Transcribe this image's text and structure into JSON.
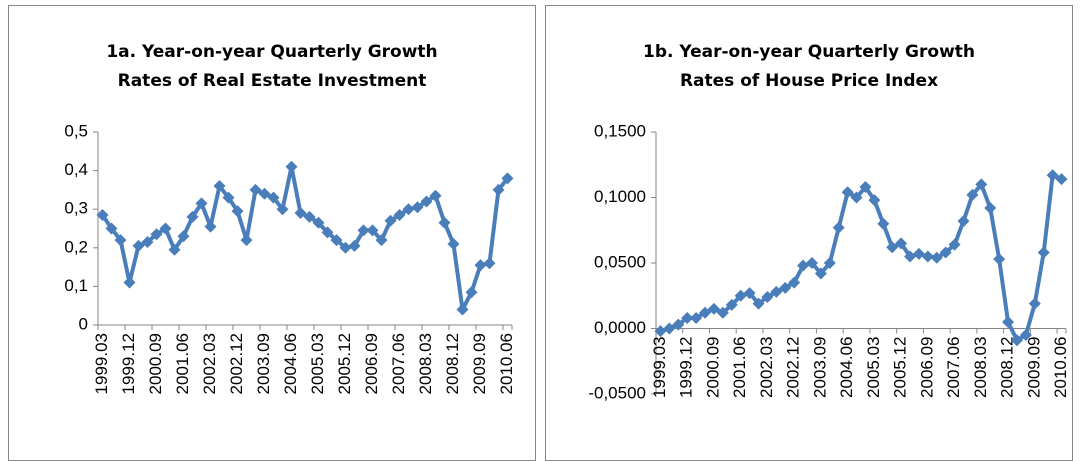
{
  "chart_data": [
    {
      "type": "line",
      "title": "1a. Year-on-year Quarterly Growth Rates of Real Estate Investment",
      "color": "#4a7ebb",
      "categories": [
        "1999.03",
        null,
        null,
        "1999.12",
        null,
        null,
        "2000.09",
        null,
        null,
        "2001.06",
        null,
        null,
        "2002.03",
        null,
        null,
        "2002.12",
        null,
        null,
        "2003.09",
        null,
        null,
        "2004.06",
        null,
        null,
        "2005.03",
        null,
        null,
        "2005.12",
        null,
        null,
        "2006.09",
        null,
        null,
        "2007.06",
        null,
        null,
        "2008.03",
        null,
        null,
        "2008.12",
        null,
        null,
        "2009.09",
        null,
        null,
        "2010.06"
      ],
      "values": [
        0.285,
        0.25,
        0.22,
        0.11,
        0.205,
        0.215,
        0.235,
        0.25,
        0.195,
        0.23,
        0.28,
        0.315,
        0.255,
        0.36,
        0.33,
        0.295,
        0.22,
        0.35,
        0.34,
        0.33,
        0.3,
        0.41,
        0.29,
        0.28,
        0.265,
        0.24,
        0.22,
        0.2,
        0.205,
        0.245,
        0.245,
        0.22,
        0.27,
        0.285,
        0.3,
        0.305,
        0.32,
        0.335,
        0.265,
        0.21,
        0.04,
        0.085,
        0.155,
        0.16,
        0.35,
        0.38
      ],
      "ylim": [
        0,
        0.5
      ],
      "yticks": [
        0,
        {
          "value": 0.1,
          "label": "0,1"
        },
        {
          "value": 0.2,
          "label": "0,2"
        },
        {
          "value": 0.3,
          "label": "0,3"
        },
        {
          "value": 0.4,
          "label": "0,4"
        },
        {
          "value": 0.5,
          "label": "0,5"
        }
      ]
    },
    {
      "type": "line",
      "title": "1b. Year-on-year Quarterly Growth Rates of House Price Index",
      "color": "#4a7ebb",
      "categories": [
        "1999.03",
        null,
        null,
        "1999.12",
        null,
        null,
        "2000.09",
        null,
        null,
        "2001.06",
        null,
        null,
        "2002.03",
        null,
        null,
        "2002.12",
        null,
        null,
        "2003.09",
        null,
        null,
        "2004.06",
        null,
        null,
        "2005.03",
        null,
        null,
        "2005.12",
        null,
        null,
        "2006.09",
        null,
        null,
        "2007.06",
        null,
        null,
        "2008.03",
        null,
        null,
        "2008.12",
        null,
        null,
        "2009.09",
        null,
        null,
        "2010.06"
      ],
      "values": [
        -0.002,
        0.0,
        0.003,
        0.008,
        0.008,
        0.012,
        0.015,
        0.012,
        0.018,
        0.025,
        0.027,
        0.019,
        0.024,
        0.028,
        0.031,
        0.035,
        0.048,
        0.05,
        0.042,
        0.05,
        0.077,
        0.104,
        0.1,
        0.108,
        0.098,
        0.08,
        0.062,
        0.065,
        0.055,
        0.057,
        0.055,
        0.054,
        0.058,
        0.064,
        0.082,
        0.102,
        0.11,
        0.092,
        0.053,
        0.005,
        -0.009,
        -0.005,
        0.019,
        0.058,
        0.117,
        0.114
      ],
      "ylim": [
        -0.05,
        0.15
      ],
      "yticks": [
        {
          "value": -0.05,
          "label": "-0,0500"
        },
        {
          "value": 0,
          "label": "0,0000"
        },
        {
          "value": 0.05,
          "label": "0,0500"
        },
        {
          "value": 0.1,
          "label": "0,1000"
        },
        {
          "value": 0.15,
          "label": "0,1500"
        }
      ]
    }
  ]
}
